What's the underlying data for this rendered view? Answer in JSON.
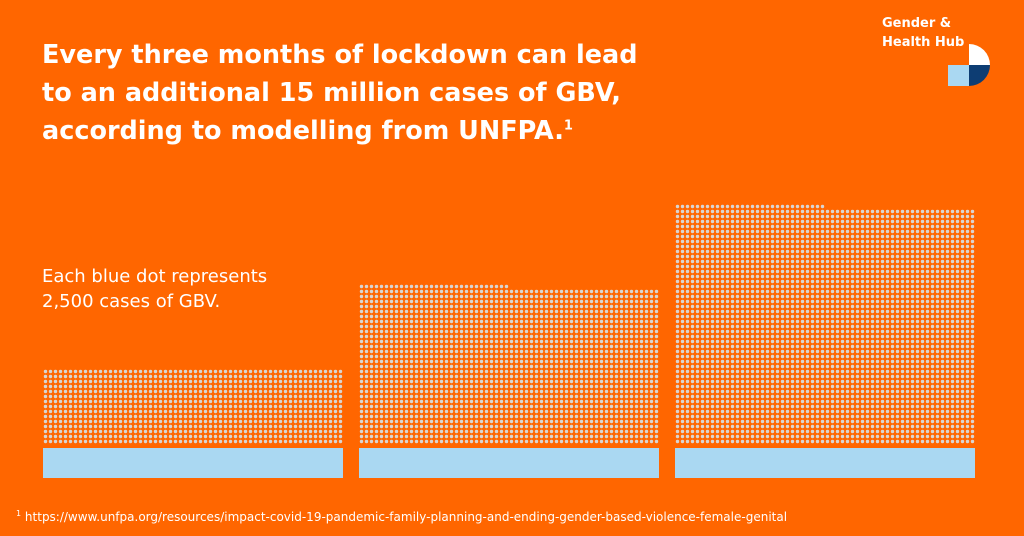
{
  "colors": {
    "background": "#ff6600",
    "dot": "#d9d5d2",
    "base_bar": "#aad8f2",
    "brand_dark": "#0d3d73",
    "brand_light": "#aad8f2",
    "text": "#ffffff"
  },
  "title": {
    "line1": "Every three months of lockdown can lead",
    "line2": "to an additional 15 million cases of GBV,",
    "line3": "according to modelling from UNFPA.",
    "footnote_marker": "1"
  },
  "brand": {
    "name": "Gender &\nHealth Hub",
    "logo_icon": "gender-health-hub-logo-icon"
  },
  "note": {
    "line1": "Each blue dot represents",
    "line2": "2,500 cases of GBV."
  },
  "chart_data": {
    "type": "bar",
    "unit_per_dot": 2500,
    "categories": [
      "",
      "",
      ""
    ],
    "values": [
      2250000,
      4725000,
      7125000
    ],
    "note": "Each blue dot represents 2,500 cases of GBV.",
    "grid": false,
    "legend": "none"
  },
  "footnote": {
    "marker": "1",
    "text": "https://www.unfpa.org/resources/impact-covid-19-pandemic-family-planning-and-ending-gender-based-violence-female-genital"
  }
}
